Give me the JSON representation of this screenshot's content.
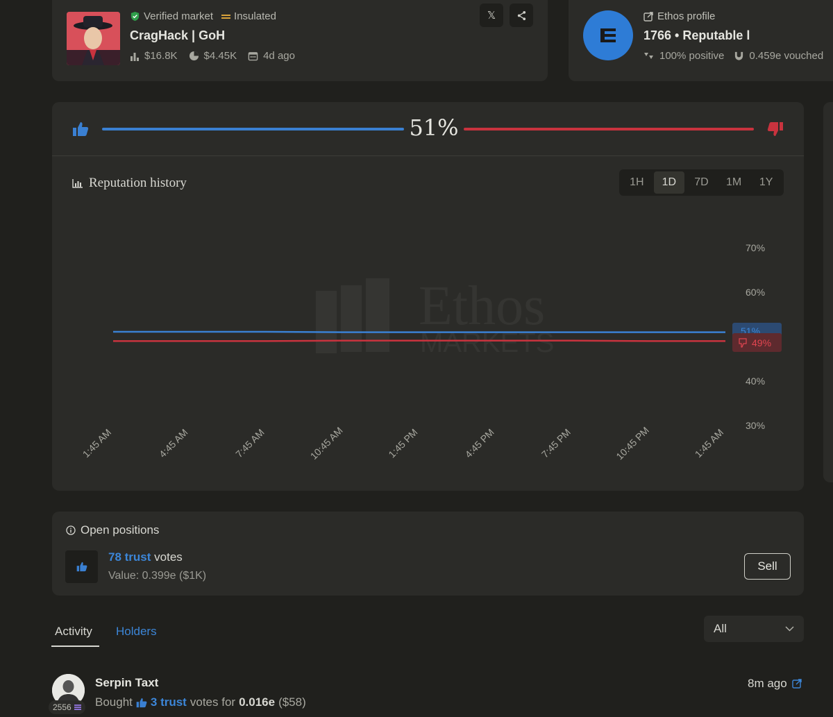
{
  "market": {
    "verified_label": "Verified market",
    "insulated_label": "Insulated",
    "title": "CragHack | GoH",
    "volume": "$16.8K",
    "market_cap": "$4.45K",
    "age": "4d ago",
    "x_label": "𝕏"
  },
  "ethos": {
    "profile_link": "Ethos profile",
    "score_line": "1766 • Reputable l",
    "positive": "100% positive",
    "vouched": "0.459e vouched"
  },
  "sentiment": {
    "percent": "51%",
    "trust_fraction": 0.51
  },
  "history": {
    "title": "Reputation history",
    "ranges": [
      "1H",
      "1D",
      "7D",
      "1M",
      "1Y"
    ],
    "selected_range": "1D",
    "watermark_word": "Ethos",
    "watermark_sub": "MARKETS"
  },
  "chart_data": {
    "type": "line",
    "x": [
      "1:45 AM",
      "4:45 AM",
      "7:45 AM",
      "10:45 AM",
      "1:45 PM",
      "4:45 PM",
      "7:45 PM",
      "10:45 PM",
      "1:45 AM"
    ],
    "series": [
      {
        "values": [
          51.1,
          51.1,
          51.1,
          51.0,
          51.0,
          51.0,
          51.0,
          51.0,
          51.0
        ],
        "color": "#3a80d2"
      },
      {
        "values": [
          49.0,
          49.0,
          49.0,
          49.1,
          49.1,
          49.1,
          49.1,
          49.0,
          49.0
        ],
        "color": "#c8333e"
      }
    ],
    "y_ticks": [
      "70%",
      "60%",
      "40%",
      "30%"
    ],
    "y_tick_values": [
      70,
      60,
      40,
      30
    ],
    "ylim": [
      30,
      70
    ],
    "trust_label": "51%",
    "distrust_label": "49%",
    "grid": false
  },
  "positions": {
    "title": "Open positions",
    "votes_count": "78 trust",
    "votes_suffix": "votes",
    "value": "Value: 0.399e ($1K)",
    "sell_label": "Sell"
  },
  "tabs": {
    "activity": "Activity",
    "holders": "Holders",
    "filter": "All"
  },
  "activity": {
    "name": "Serpin Taxt",
    "score": "2556",
    "action": "Bought",
    "amount": "3 trust",
    "middle": "votes for",
    "price": "0.016e",
    "usd": "($58)",
    "time": "8m ago"
  }
}
